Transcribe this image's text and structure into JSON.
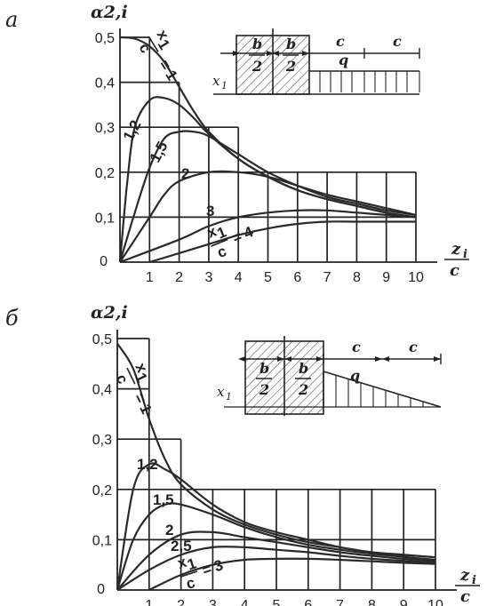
{
  "chart_data": [
    {
      "id": "a",
      "panel_label": "а",
      "type": "line",
      "ylabel": "α2,i",
      "xlabel_num": "z",
      "xlabel_sub": "i",
      "xlabel_den": "c",
      "xlim": [
        0,
        10
      ],
      "ylim": [
        0,
        0.5
      ],
      "x_ticks": [
        "1",
        "2",
        "3",
        "4",
        "5",
        "6",
        "7",
        "8",
        "9",
        "10"
      ],
      "y_ticks": [
        "0",
        "0,1",
        "0,2",
        "0,3",
        "0,4",
        "0,5"
      ],
      "origin_label": "0",
      "curve_label_prefix": "x",
      "curve_label_sub": "1",
      "curve_label_den": "c",
      "series": [
        {
          "name": "1",
          "x": [
            0.0,
            0.5,
            1.0,
            1.5,
            2.0,
            2.5,
            3.0,
            4.0,
            5.0,
            6.0,
            7.0,
            8.0,
            9.0,
            10.0
          ],
          "y": [
            0.5,
            0.497,
            0.48,
            0.445,
            0.39,
            0.335,
            0.29,
            0.23,
            0.19,
            0.16,
            0.14,
            0.125,
            0.11,
            0.1
          ]
        },
        {
          "name": "1,2",
          "x": [
            0.0,
            0.25,
            0.5,
            1.0,
            1.5,
            2.0,
            2.5,
            3.0,
            4.0,
            5.0,
            6.0,
            7.0,
            8.0,
            9.0,
            10.0
          ],
          "y": [
            0.0,
            0.18,
            0.3,
            0.36,
            0.365,
            0.35,
            0.32,
            0.285,
            0.23,
            0.19,
            0.16,
            0.14,
            0.125,
            0.11,
            0.1
          ]
        },
        {
          "name": "1,5",
          "x": [
            0.0,
            0.5,
            1.0,
            1.5,
            2.0,
            2.5,
            3.0,
            4.0,
            5.0,
            6.0,
            7.0,
            8.0,
            9.0,
            10.0
          ],
          "y": [
            0.0,
            0.11,
            0.21,
            0.275,
            0.29,
            0.29,
            0.28,
            0.24,
            0.2,
            0.17,
            0.145,
            0.13,
            0.115,
            0.105
          ]
        },
        {
          "name": "2",
          "x": [
            0.0,
            1.0,
            1.5,
            2.0,
            3.0,
            4.0,
            5.0,
            6.0,
            7.0,
            8.0,
            9.0,
            10.0
          ],
          "y": [
            0.0,
            0.1,
            0.15,
            0.18,
            0.2,
            0.2,
            0.19,
            0.17,
            0.15,
            0.135,
            0.12,
            0.105
          ]
        },
        {
          "name": "3",
          "x": [
            0.0,
            2.0,
            3.0,
            4.0,
            5.0,
            6.0,
            7.0,
            8.0,
            9.0,
            10.0
          ],
          "y": [
            0.0,
            0.05,
            0.08,
            0.1,
            0.11,
            0.115,
            0.115,
            0.11,
            0.105,
            0.1
          ]
        },
        {
          "name": "4",
          "x": [
            1.0,
            2.0,
            3.0,
            4.0,
            5.0,
            6.0,
            7.0,
            8.0,
            9.0,
            10.0
          ],
          "y": [
            0.0,
            0.02,
            0.04,
            0.06,
            0.075,
            0.085,
            0.09,
            0.09,
            0.09,
            0.09
          ]
        }
      ],
      "curve_labels": [
        "1",
        "1,2",
        "1,5",
        "2",
        "3",
        "4"
      ],
      "inset": {
        "b_num": "b",
        "b_den": "2",
        "c": "c",
        "q": "q",
        "x1": "x",
        "x1_sub": "1",
        "load": "uniform"
      }
    },
    {
      "id": "b",
      "panel_label": "б",
      "type": "line",
      "ylabel": "α2,i",
      "xlabel_num": "z",
      "xlabel_sub": "i",
      "xlabel_den": "c",
      "xlim": [
        0,
        10
      ],
      "ylim": [
        0,
        0.5
      ],
      "x_ticks": [
        "1",
        "2",
        "3",
        "4",
        "5",
        "6",
        "7",
        "8",
        "9",
        "10"
      ],
      "y_ticks": [
        "0",
        "0,1",
        "0,2",
        "0,3",
        "0,4",
        "0,5"
      ],
      "origin_label": "0",
      "curve_label_prefix": "x",
      "curve_label_sub": "1",
      "curve_label_den": "c",
      "series": [
        {
          "name": "1",
          "x": [
            0.0,
            0.5,
            1.0,
            1.5,
            2.0,
            3.0,
            4.0,
            5.0,
            6.0,
            7.0,
            8.0,
            9.0,
            10.0
          ],
          "y": [
            0.49,
            0.44,
            0.34,
            0.26,
            0.21,
            0.16,
            0.13,
            0.11,
            0.095,
            0.085,
            0.075,
            0.07,
            0.065
          ]
        },
        {
          "name": "1,2",
          "x": [
            0.0,
            0.5,
            1.0,
            1.5,
            2.0,
            3.0,
            4.0,
            5.0,
            6.0,
            7.0,
            8.0,
            9.0,
            10.0
          ],
          "y": [
            0.0,
            0.2,
            0.25,
            0.24,
            0.22,
            0.17,
            0.135,
            0.115,
            0.1,
            0.085,
            0.075,
            0.07,
            0.065
          ]
        },
        {
          "name": "1,5",
          "x": [
            0.0,
            0.5,
            1.0,
            1.5,
            2.0,
            3.0,
            4.0,
            5.0,
            6.0,
            7.0,
            8.0,
            9.0,
            10.0
          ],
          "y": [
            0.0,
            0.1,
            0.15,
            0.17,
            0.17,
            0.15,
            0.125,
            0.105,
            0.09,
            0.08,
            0.072,
            0.066,
            0.06
          ]
        },
        {
          "name": "2",
          "x": [
            0.0,
            1.0,
            2.0,
            3.0,
            4.0,
            5.0,
            6.0,
            7.0,
            8.0,
            9.0,
            10.0
          ],
          "y": [
            0.0,
            0.07,
            0.11,
            0.115,
            0.105,
            0.095,
            0.085,
            0.075,
            0.068,
            0.062,
            0.058
          ]
        },
        {
          "name": "2,5",
          "x": [
            0.0,
            1.0,
            2.0,
            3.0,
            4.0,
            5.0,
            6.0,
            7.0,
            8.0,
            9.0,
            10.0
          ],
          "y": [
            0.0,
            0.04,
            0.07,
            0.085,
            0.085,
            0.08,
            0.075,
            0.068,
            0.062,
            0.058,
            0.055
          ]
        },
        {
          "name": "3",
          "x": [
            1.0,
            2.0,
            3.0,
            4.0,
            5.0,
            6.0,
            7.0,
            8.0,
            9.0,
            10.0
          ],
          "y": [
            0.0,
            0.03,
            0.05,
            0.06,
            0.062,
            0.062,
            0.06,
            0.057,
            0.054,
            0.052
          ]
        }
      ],
      "curve_labels": [
        "1",
        "1,2",
        "1,5",
        "2",
        "2,5",
        "3"
      ],
      "inset": {
        "b_num": "b",
        "b_den": "2",
        "c": "c",
        "q": "q",
        "x1": "x",
        "x1_sub": "1",
        "load": "triangular"
      }
    }
  ]
}
